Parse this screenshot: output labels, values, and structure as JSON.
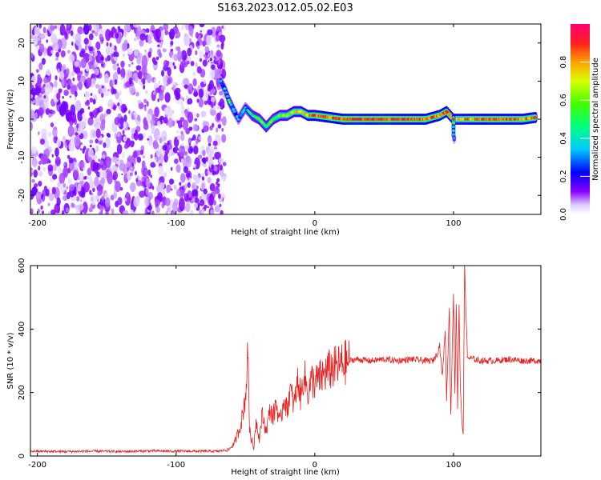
{
  "figure": {
    "title": "S163.2023.012.05.02.E03"
  },
  "colors": {
    "snr_line": "#e82020",
    "spectrogram_scatter": "#7a00ff",
    "axes": "#000000"
  },
  "chart_data": [
    {
      "type": "heatmap",
      "title": "",
      "xlabel": "Height of straight line (km)",
      "ylabel": "Frequency (Hz)",
      "xlim": [
        -205,
        163
      ],
      "ylim": [
        -25,
        25
      ],
      "xticks": [
        -200,
        -100,
        0,
        100
      ],
      "yticks": [
        -20,
        -10,
        0,
        10,
        20
      ],
      "colorbar": {
        "label": "Normalized spectral amplitude",
        "range": [
          0,
          1
        ],
        "ticks": [
          "0.0",
          "0.2",
          "0.4",
          "0.6",
          "0.8"
        ],
        "colormap": "gist_rainbow_r"
      },
      "noise_region": {
        "x_range": [
          -205,
          -65
        ],
        "y_range": [
          -25,
          25
        ],
        "level": 0.1
      },
      "ridge": [
        {
          "x": -68,
          "y": 10,
          "level": 0.3
        },
        {
          "x": -65,
          "y": 8,
          "level": 0.35
        },
        {
          "x": -62,
          "y": 5,
          "level": 0.4
        },
        {
          "x": -58,
          "y": 2,
          "level": 0.35
        },
        {
          "x": -55,
          "y": 0,
          "level": 0.3
        },
        {
          "x": -50,
          "y": 3,
          "level": 0.35
        },
        {
          "x": -45,
          "y": 1,
          "level": 0.45
        },
        {
          "x": -40,
          "y": 0,
          "level": 0.55
        },
        {
          "x": -35,
          "y": -2,
          "level": 0.5
        },
        {
          "x": -30,
          "y": 0,
          "level": 0.55
        },
        {
          "x": -25,
          "y": 1,
          "level": 0.6
        },
        {
          "x": -20,
          "y": 1,
          "level": 0.6
        },
        {
          "x": -15,
          "y": 2,
          "level": 0.7
        },
        {
          "x": -10,
          "y": 2,
          "level": 0.7
        },
        {
          "x": -5,
          "y": 1,
          "level": 0.75
        },
        {
          "x": 0,
          "y": 1,
          "level": 0.85
        },
        {
          "x": 10,
          "y": 0.5,
          "level": 0.85
        },
        {
          "x": 20,
          "y": 0,
          "level": 0.9
        },
        {
          "x": 30,
          "y": 0,
          "level": 0.95
        },
        {
          "x": 40,
          "y": 0,
          "level": 0.9
        },
        {
          "x": 50,
          "y": 0,
          "level": 0.95
        },
        {
          "x": 60,
          "y": 0,
          "level": 0.9
        },
        {
          "x": 70,
          "y": 0,
          "level": 0.9
        },
        {
          "x": 80,
          "y": 0,
          "level": 0.85
        },
        {
          "x": 90,
          "y": 1,
          "level": 0.85
        },
        {
          "x": 95,
          "y": 2,
          "level": 0.9
        },
        {
          "x": 100,
          "y": 0,
          "level": 0.8
        },
        {
          "x": 105,
          "y": 0,
          "level": 0.7
        },
        {
          "x": 110,
          "y": 0,
          "level": 0.8
        },
        {
          "x": 120,
          "y": 0,
          "level": 0.85
        },
        {
          "x": 130,
          "y": 0,
          "level": 0.9
        },
        {
          "x": 140,
          "y": 0,
          "level": 0.85
        },
        {
          "x": 150,
          "y": 0,
          "level": 0.8
        },
        {
          "x": 160,
          "y": 0.5,
          "level": 0.8
        }
      ],
      "ridge_branch": [
        {
          "x": 100,
          "y": -2,
          "level": 0.4
        },
        {
          "x": 100,
          "y": -4,
          "level": 0.3
        },
        {
          "x": 101,
          "y": -6,
          "level": 0.2
        }
      ]
    },
    {
      "type": "line",
      "title": "",
      "xlabel": "Height of straight line (km)",
      "ylabel": "SNR (10 * v/v)",
      "xlim": [
        -205,
        163
      ],
      "ylim": [
        0,
        600
      ],
      "xticks": [
        -200,
        -100,
        0,
        100
      ],
      "yticks": [
        0,
        200,
        400,
        600
      ],
      "series": [
        {
          "x": [
            -205,
            -180,
            -160,
            -140,
            -120,
            -100,
            -80,
            -70,
            -62,
            -58,
            -54,
            -52,
            -50,
            -48,
            -47,
            -46,
            -45,
            -44,
            -43,
            -42,
            -40,
            -38,
            -35,
            -32,
            -30,
            -28,
            -25,
            -22,
            -20,
            -18,
            -15,
            -12,
            -10,
            -8,
            -5,
            -2,
            0,
            5,
            10,
            15,
            20,
            25,
            30,
            40,
            50,
            60,
            70,
            80,
            85,
            88,
            90,
            92,
            94,
            95,
            97,
            98,
            100,
            101,
            102,
            103,
            104,
            105,
            106,
            107,
            108,
            110,
            120,
            130,
            140,
            150,
            163
          ],
          "y": [
            15,
            14,
            15,
            14,
            16,
            15,
            15,
            15,
            20,
            40,
            90,
            130,
            190,
            330,
            80,
            60,
            40,
            20,
            90,
            110,
            55,
            130,
            80,
            150,
            120,
            170,
            100,
            190,
            140,
            210,
            160,
            240,
            180,
            260,
            200,
            240,
            230,
            250,
            270,
            280,
            290,
            300,
            305,
            300,
            305,
            300,
            305,
            300,
            300,
            320,
            350,
            250,
            400,
            180,
            470,
            130,
            520,
            200,
            480,
            150,
            480,
            200,
            120,
            60,
            600,
            310,
            300,
            300,
            305,
            300,
            300
          ]
        }
      ]
    }
  ]
}
